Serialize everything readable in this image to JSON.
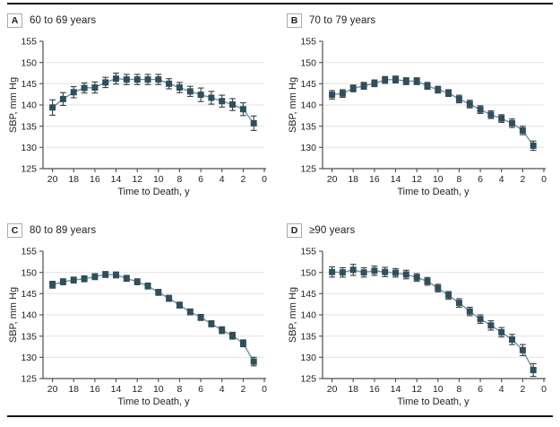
{
  "figure": {
    "background": "#ffffff",
    "marker_color": "#2e4f5e",
    "trend_line_color": "#74909e",
    "error_bar_color": "#3c3c3c",
    "grid_color": "#e2e2e2",
    "axis_color": "#4d4d4d",
    "text_color": "#1f1f1f",
    "rule_color": "#141414"
  },
  "chart_data": [
    {
      "type": "line",
      "panel_label": "A",
      "title": "60 to 69 years",
      "xlabel": "Time to Death, y",
      "ylabel": "SBP, mm Hg",
      "ylim": [
        125,
        155
      ],
      "yticks": [
        125,
        130,
        135,
        140,
        145,
        150,
        155
      ],
      "xticks": [
        20,
        18,
        16,
        14,
        12,
        10,
        8,
        6,
        4,
        2,
        0
      ],
      "x_reversed": true,
      "grid": true,
      "marker": "square",
      "x": [
        20,
        19,
        18,
        17,
        16,
        15,
        14,
        13,
        12,
        11,
        10,
        9,
        8,
        7,
        6,
        5,
        4,
        3,
        2,
        1
      ],
      "values": [
        139.4,
        141.4,
        143.0,
        144.0,
        144.1,
        145.3,
        146.2,
        146.0,
        146.0,
        146.0,
        146.0,
        145.0,
        144.1,
        143.2,
        142.4,
        141.7,
        140.9,
        140.1,
        139.0,
        135.7
      ],
      "errors": [
        1.8,
        1.5,
        1.3,
        1.2,
        1.3,
        1.2,
        1.3,
        1.2,
        1.2,
        1.2,
        1.2,
        1.2,
        1.2,
        1.2,
        1.6,
        1.5,
        1.4,
        1.4,
        1.5,
        1.7
      ]
    },
    {
      "type": "line",
      "panel_label": "B",
      "title": "70 to 79 years",
      "xlabel": "Time to Death, y",
      "ylabel": "SBP, mm Hg",
      "ylim": [
        125,
        155
      ],
      "yticks": [
        125,
        130,
        135,
        140,
        145,
        150,
        155
      ],
      "xticks": [
        20,
        18,
        16,
        14,
        12,
        10,
        8,
        6,
        4,
        2,
        0
      ],
      "x_reversed": true,
      "grid": true,
      "marker": "square",
      "x": [
        20,
        19,
        18,
        17,
        16,
        15,
        14,
        13,
        12,
        11,
        10,
        9,
        8,
        7,
        6,
        5,
        4,
        3,
        2,
        1
      ],
      "values": [
        142.4,
        142.7,
        143.9,
        144.5,
        145.1,
        145.9,
        146.0,
        145.6,
        145.6,
        144.5,
        143.6,
        142.8,
        141.4,
        140.2,
        138.9,
        137.7,
        136.8,
        135.7,
        134.0,
        130.4
      ],
      "errors": [
        1.0,
        0.9,
        0.8,
        0.8,
        0.8,
        0.8,
        0.8,
        0.8,
        0.8,
        0.8,
        0.8,
        0.8,
        0.9,
        0.9,
        0.9,
        0.9,
        0.9,
        1.0,
        1.0,
        1.1
      ]
    },
    {
      "type": "line",
      "panel_label": "C",
      "title": "80 to 89 years",
      "xlabel": "Time to Death, y",
      "ylabel": "SBP, mm Hg",
      "ylim": [
        125,
        155
      ],
      "yticks": [
        125,
        130,
        135,
        140,
        145,
        150,
        155
      ],
      "xticks": [
        20,
        18,
        16,
        14,
        12,
        10,
        8,
        6,
        4,
        2,
        0
      ],
      "x_reversed": true,
      "grid": true,
      "marker": "square",
      "x": [
        20,
        19,
        18,
        17,
        16,
        15,
        14,
        13,
        12,
        11,
        10,
        9,
        8,
        7,
        6,
        5,
        4,
        3,
        2,
        1
      ],
      "values": [
        147.1,
        147.8,
        148.2,
        148.5,
        149.0,
        149.5,
        149.4,
        148.6,
        147.8,
        146.8,
        145.3,
        143.9,
        142.3,
        140.7,
        139.4,
        137.9,
        136.4,
        135.1,
        133.3,
        129.0
      ],
      "errors": [
        0.8,
        0.7,
        0.7,
        0.7,
        0.7,
        0.7,
        0.7,
        0.7,
        0.7,
        0.7,
        0.7,
        0.7,
        0.7,
        0.7,
        0.7,
        0.7,
        0.8,
        0.8,
        0.8,
        1.0
      ]
    },
    {
      "type": "line",
      "panel_label": "D",
      "title": "≥90 years",
      "xlabel": "Time to Death, y",
      "ylabel": "SBP, mm Hg",
      "ylim": [
        125,
        155
      ],
      "yticks": [
        125,
        130,
        135,
        140,
        145,
        150,
        155
      ],
      "xticks": [
        20,
        18,
        16,
        14,
        12,
        10,
        8,
        6,
        4,
        2,
        0
      ],
      "x_reversed": true,
      "grid": true,
      "marker": "square",
      "x": [
        20,
        19,
        18,
        17,
        16,
        15,
        14,
        13,
        12,
        11,
        10,
        9,
        8,
        7,
        6,
        5,
        4,
        3,
        2,
        1
      ],
      "values": [
        150.1,
        150.0,
        150.6,
        150.0,
        150.4,
        150.1,
        149.9,
        149.5,
        148.8,
        147.9,
        146.3,
        144.6,
        142.8,
        140.8,
        139.0,
        137.5,
        135.9,
        134.2,
        131.7,
        127.0
      ],
      "errors": [
        1.2,
        1.1,
        1.3,
        1.1,
        1.1,
        1.1,
        1.0,
        1.0,
        0.9,
        0.9,
        0.9,
        0.9,
        1.0,
        1.0,
        1.0,
        1.1,
        1.1,
        1.2,
        1.3,
        1.5
      ]
    }
  ]
}
